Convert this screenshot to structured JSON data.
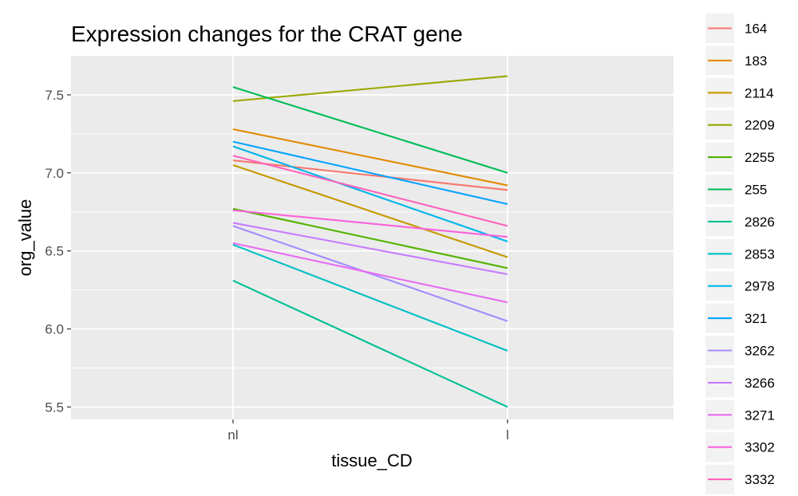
{
  "chart_data": {
    "type": "line",
    "title": "Expression changes for the CRAT gene",
    "xlabel": "tissue_CD",
    "ylabel": "org_value",
    "categories": [
      "nl",
      "l"
    ],
    "ylim": [
      5.42,
      7.75
    ],
    "yticks": [
      5.5,
      6.0,
      6.5,
      7.0,
      7.5
    ],
    "ytick_labels": [
      "5.5",
      "6.0",
      "6.5",
      "7.0",
      "7.5"
    ],
    "grid": true,
    "legend_position": "right",
    "series": [
      {
        "name": "164",
        "color": "#F8766D",
        "values": [
          7.08,
          6.89
        ]
      },
      {
        "name": "183",
        "color": "#E38900",
        "values": [
          7.28,
          6.92
        ]
      },
      {
        "name": "2114",
        "color": "#C49A00",
        "values": [
          7.05,
          6.46
        ]
      },
      {
        "name": "2209",
        "color": "#99A800",
        "values": [
          7.46,
          7.62
        ]
      },
      {
        "name": "2255",
        "color": "#53B400",
        "values": [
          6.77,
          6.39
        ]
      },
      {
        "name": "255",
        "color": "#00BC56",
        "values": [
          7.55,
          7.0
        ]
      },
      {
        "name": "2826",
        "color": "#00C094",
        "values": [
          6.31,
          5.5
        ]
      },
      {
        "name": "2853",
        "color": "#00BFC4",
        "values": [
          6.54,
          5.86
        ]
      },
      {
        "name": "2978",
        "color": "#00B6EB",
        "values": [
          7.17,
          6.56
        ]
      },
      {
        "name": "321",
        "color": "#06A4FF",
        "values": [
          7.2,
          6.8
        ]
      },
      {
        "name": "3262",
        "color": "#A58AFF",
        "values": [
          6.66,
          6.05
        ]
      },
      {
        "name": "3266",
        "color": "#C77CFF",
        "values": [
          6.68,
          6.35
        ]
      },
      {
        "name": "3271",
        "color": "#E76BF3",
        "values": [
          6.55,
          6.17
        ]
      },
      {
        "name": "3302",
        "color": "#FA62DB",
        "values": [
          6.76,
          6.59
        ]
      },
      {
        "name": "3332",
        "color": "#FF62BC",
        "values": [
          7.11,
          6.66
        ]
      }
    ]
  },
  "colors": {
    "panel_background": "#EBEBEB",
    "grid_major": "#FFFFFF",
    "legend_key_background": "#F2F2F2"
  }
}
